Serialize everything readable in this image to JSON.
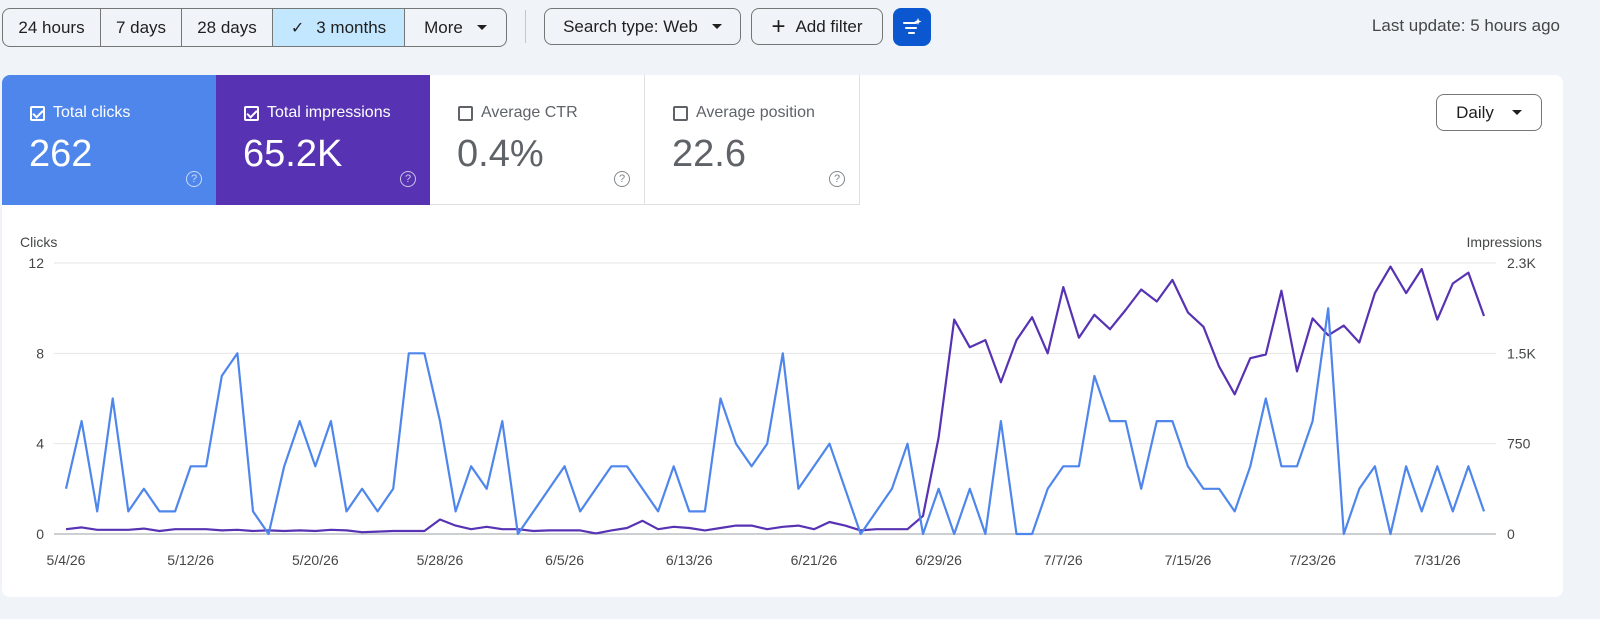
{
  "toolbar": {
    "ranges": [
      {
        "label": "24 hours",
        "selected": false
      },
      {
        "label": "7 days",
        "selected": false
      },
      {
        "label": "28 days",
        "selected": false
      },
      {
        "label": "3 months",
        "selected": true
      },
      {
        "label": "More",
        "selected": false
      }
    ],
    "search_type_label": "Search type: Web",
    "add_filter_label": "Add filter",
    "last_update": "Last update: 5 hours ago"
  },
  "metrics": {
    "clicks": {
      "label": "Total clicks",
      "value": "262",
      "checked": true,
      "color": "#4f86ec"
    },
    "impressions": {
      "label": "Total impressions",
      "value": "65.2K",
      "checked": true,
      "color": "#5733b3"
    },
    "ctr": {
      "label": "Average CTR",
      "value": "0.4%",
      "checked": false
    },
    "position": {
      "label": "Average position",
      "value": "22.6",
      "checked": false
    }
  },
  "granularity": {
    "selected": "Daily"
  },
  "chart_data": {
    "type": "line",
    "left_axis": {
      "label": "Clicks",
      "ticks": [
        "0",
        "4",
        "8",
        "12"
      ],
      "range": [
        0,
        12
      ]
    },
    "right_axis": {
      "label": "Impressions",
      "ticks": [
        "0",
        "750",
        "1.5K",
        "2.3K"
      ],
      "tick_values": [
        0,
        750,
        1500,
        2250
      ],
      "range": [
        0,
        2250
      ]
    },
    "x_ticks": [
      {
        "label": "5/4/26",
        "index": 0
      },
      {
        "label": "5/12/26",
        "index": 8
      },
      {
        "label": "5/20/26",
        "index": 16
      },
      {
        "label": "5/28/26",
        "index": 24
      },
      {
        "label": "6/5/26",
        "index": 32
      },
      {
        "label": "6/13/26",
        "index": 40
      },
      {
        "label": "6/21/26",
        "index": 48
      },
      {
        "label": "6/29/26",
        "index": 56
      },
      {
        "label": "7/7/26",
        "index": 64
      },
      {
        "label": "7/15/26",
        "index": 72
      },
      {
        "label": "7/23/26",
        "index": 80
      },
      {
        "label": "7/31/26",
        "index": 88
      }
    ],
    "grid": true,
    "series": [
      {
        "name": "Clicks",
        "axis": "left",
        "color": "#4f86ec",
        "values": [
          2,
          5,
          1,
          6,
          1,
          2,
          1,
          1,
          3,
          3,
          7,
          8,
          1,
          0,
          3,
          5,
          3,
          5,
          1,
          2,
          1,
          2,
          8,
          8,
          5,
          1,
          3,
          2,
          5,
          0,
          1,
          2,
          3,
          1,
          2,
          3,
          3,
          2,
          1,
          3,
          1,
          1,
          6,
          4,
          3,
          4,
          8,
          2,
          3,
          4,
          2,
          0,
          1,
          2,
          4,
          0,
          2,
          0,
          2,
          0,
          5,
          0,
          0,
          2,
          3,
          3,
          7,
          5,
          5,
          2,
          5,
          5,
          3,
          2,
          2,
          1,
          3,
          6,
          3,
          3,
          5,
          10,
          0,
          2,
          3,
          0,
          3,
          1,
          3,
          1,
          3,
          1
        ]
      },
      {
        "name": "Impressions",
        "axis": "right",
        "color": "#5733b3",
        "values": [
          40,
          55,
          35,
          35,
          35,
          45,
          25,
          40,
          40,
          40,
          30,
          35,
          25,
          30,
          25,
          30,
          25,
          35,
          30,
          15,
          20,
          25,
          25,
          25,
          120,
          70,
          40,
          60,
          40,
          40,
          25,
          30,
          30,
          30,
          5,
          30,
          50,
          110,
          40,
          60,
          50,
          30,
          50,
          70,
          70,
          40,
          60,
          70,
          40,
          100,
          70,
          30,
          40,
          40,
          40,
          150,
          800,
          1780,
          1550,
          1610,
          1260,
          1610,
          1800,
          1500,
          2050,
          1630,
          1820,
          1700,
          1860,
          2030,
          1930,
          2110,
          1840,
          1720,
          1390,
          1160,
          1460,
          1490,
          2020,
          1350,
          1790,
          1650,
          1730,
          1590,
          2000,
          2220,
          2000,
          2200,
          1780,
          2080,
          2170,
          1810
        ]
      }
    ]
  }
}
